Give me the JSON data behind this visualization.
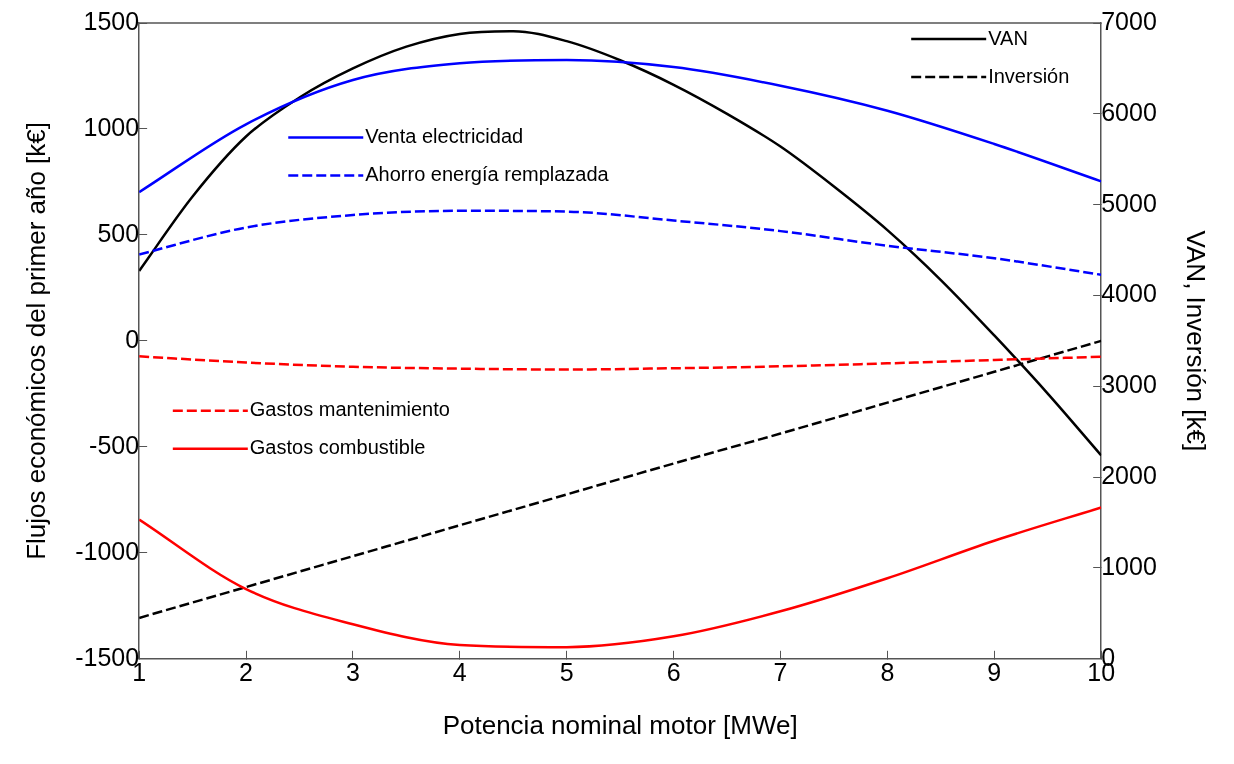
{
  "chart_data": {
    "type": "line",
    "xlabel": "Potencia nominal motor [MWe]",
    "ylabel": "Flujos económicos del primer año [k€]",
    "y2label": "VAN, Inversión [k€]",
    "x": [
      1,
      2,
      3,
      4,
      5,
      6,
      7,
      8,
      9,
      10
    ],
    "series": [
      {
        "name": "Venta electricidad",
        "color": "#0000ff",
        "line_style": "solid",
        "values": [
          702,
          1022,
          1231,
          1310,
          1325,
          1292,
          1204,
          1086,
          929,
          753
        ]
      },
      {
        "name": "Ahorro energía remplazada",
        "color": "#0000ff",
        "line_style": "dashed",
        "values": [
          408,
          535,
          594,
          614,
          610,
          568,
          518,
          449,
          390,
          312
        ]
      },
      {
        "name": "Gastos mantenimiento",
        "color": "#ff0000",
        "line_style": "dashed",
        "values": [
          -73,
          -102,
          -122,
          -131,
          -135,
          -129,
          -120,
          -106,
          -90,
          -75
        ]
      },
      {
        "name": "Gastos combustible",
        "color": "#ff0000",
        "line_style": "solid",
        "values": [
          -843,
          -1171,
          -1337,
          -1435,
          -1445,
          -1394,
          -1276,
          -1120,
          -943,
          -786
        ]
      },
      {
        "name": "VAN",
        "color": "#000000",
        "line_style": "solid",
        "axis": "y2",
        "x": [
          1,
          1.5,
          2,
          2.5,
          3,
          3.5,
          4,
          4.5,
          5,
          5.5,
          6,
          6.5,
          7,
          7.5,
          8,
          8.5,
          9,
          9.5,
          10
        ],
        "values": [
          4270,
          5090,
          5750,
          6180,
          6500,
          6740,
          6880,
          6910,
          6800,
          6590,
          6320,
          6000,
          5640,
          5200,
          4720,
          4170,
          3560,
          2920,
          2240
        ]
      },
      {
        "name": "Inversión",
        "color": "#000000",
        "line_style": "dashed",
        "axis": "y2",
        "values": [
          450,
          790,
          1130,
          1470,
          1810,
          2150,
          2480,
          2820,
          3160,
          3500
        ]
      }
    ],
    "xlim": [
      1,
      10
    ],
    "xticks": [
      1,
      2,
      3,
      4,
      5,
      6,
      7,
      8,
      9,
      10
    ],
    "ylim": [
      -1500,
      1500
    ],
    "yticks": [
      -1500,
      -1000,
      -500,
      0,
      500,
      1000,
      1500
    ],
    "y2lim": [
      0,
      7000
    ],
    "y2ticks": [
      0,
      1000,
      2000,
      3000,
      4000,
      5000,
      6000,
      7000
    ],
    "grid": false,
    "legend": "top right",
    "marker": "none"
  }
}
